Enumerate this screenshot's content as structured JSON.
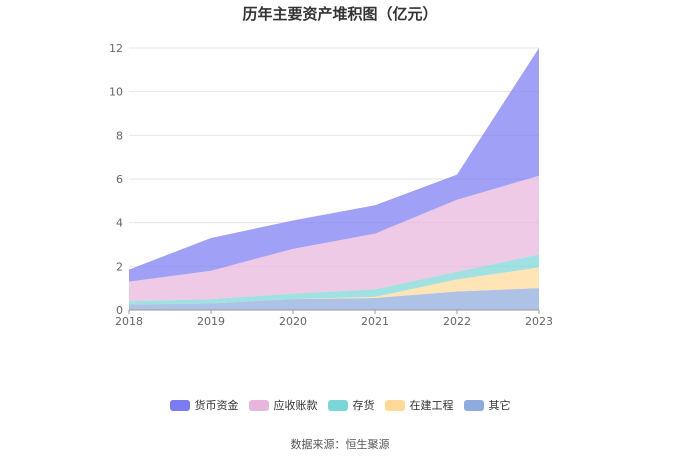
{
  "chart_data": {
    "type": "area",
    "stacked": true,
    "title": "历年主要资产堆积图（亿元）",
    "categories": [
      "2018",
      "2019",
      "2020",
      "2021",
      "2022",
      "2023"
    ],
    "ylim": [
      0,
      12
    ],
    "yticks": [
      0,
      2,
      4,
      6,
      8,
      10,
      12
    ],
    "grid": true,
    "legend_position": "bottom",
    "series": [
      {
        "name": "其它",
        "color": "#8fabdd",
        "values": [
          0.25,
          0.3,
          0.5,
          0.55,
          0.85,
          1.0
        ]
      },
      {
        "name": "在建工程",
        "color": "#ffd99a",
        "values": [
          0.0,
          0.0,
          0.0,
          0.05,
          0.55,
          0.95
        ]
      },
      {
        "name": "存货",
        "color": "#7dd6d6",
        "values": [
          0.15,
          0.2,
          0.25,
          0.35,
          0.35,
          0.6
        ]
      },
      {
        "name": "应收账款",
        "color": "#e8b6dc",
        "values": [
          0.9,
          1.3,
          2.05,
          2.55,
          3.3,
          3.6
        ]
      },
      {
        "name": "货币资金",
        "color": "#7b7cf2",
        "values": [
          0.55,
          1.5,
          1.3,
          1.3,
          1.15,
          5.85
        ]
      }
    ],
    "legend_order": [
      "货币资金",
      "应收账款",
      "存货",
      "在建工程",
      "其它"
    ]
  },
  "footer": {
    "source": "数据来源：恒生聚源"
  }
}
